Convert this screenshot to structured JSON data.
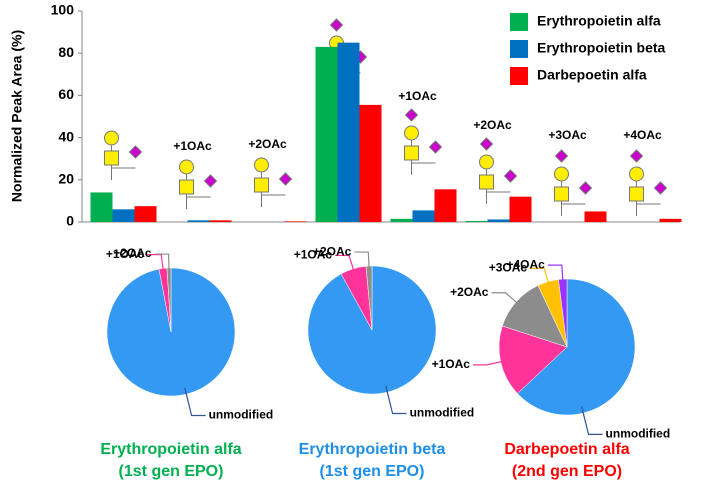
{
  "chart_data": [
    {
      "type": "bar",
      "ylabel": "Normalized Peak Area (%)",
      "categories": [
        null,
        "+1OAc",
        "+2OAc",
        null,
        "+1OAc",
        "+2OAc",
        "+3OAc",
        "+4OAc"
      ],
      "series": [
        {
          "name": "Erythropoietin alfa",
          "color": "#00b050",
          "values": [
            14,
            0,
            0,
            83,
            1.5,
            0.5,
            0,
            0
          ]
        },
        {
          "name": "Erythropoietin beta",
          "color": "#0070c0",
          "values": [
            6,
            0.8,
            0,
            85,
            5.5,
            1.2,
            0,
            0
          ]
        },
        {
          "name": "Darbepoetin alfa",
          "color": "#ff0000",
          "values": [
            7.5,
            0.8,
            0.3,
            55.5,
            15.5,
            12,
            5,
            1.5
          ]
        }
      ],
      "ylim": [
        0,
        100
      ],
      "yticks": [
        0,
        20,
        40,
        60,
        80,
        100
      ],
      "legend": "top-right"
    },
    {
      "type": "pie",
      "title": "Erythropoietin alfa",
      "subtitle": "(1st gen EPO)",
      "title_color": "#00b050",
      "categories": [
        "unmodified",
        "+1OAc",
        "+2OAc"
      ],
      "values": [
        97,
        2,
        1
      ],
      "colors": [
        "#3399f3",
        "#ff3399",
        "#8c8c8c"
      ]
    },
    {
      "type": "pie",
      "title": "Erythropoietin beta",
      "subtitle": "(1st gen EPO)",
      "title_color": "#1e8fe8",
      "categories": [
        "unmodified",
        "+1OAc",
        "+2OAc"
      ],
      "values": [
        92,
        6.5,
        1.5
      ],
      "colors": [
        "#3399f3",
        "#ff3399",
        "#8c8c8c"
      ]
    },
    {
      "type": "pie",
      "title": "Darbepoetin alfa",
      "subtitle": "(2nd gen EPO)",
      "title_color": "#ff0000",
      "categories": [
        "unmodified",
        "+1OAc",
        "+2OAc",
        "+3OAc",
        "+4OAc"
      ],
      "values": [
        63,
        17,
        13,
        5,
        2
      ],
      "colors": [
        "#3399f3",
        "#ff3399",
        "#8c8c8c",
        "#ffc000",
        "#9933ff"
      ]
    }
  ]
}
